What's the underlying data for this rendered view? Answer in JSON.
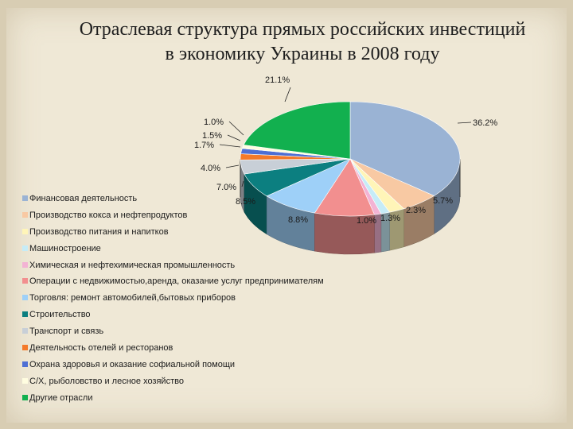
{
  "title": {
    "line1": "Отраслевая структура прямых российских инвестиций",
    "line2": "в экономику Украины в 2008 году"
  },
  "chart_data": {
    "type": "pie",
    "title": "Отраслевая структура прямых российских инвестиций в экономику Украины в 2008 году",
    "legend_position": "left-bottom",
    "slices": [
      {
        "name": "Финансовая деятельность",
        "value": 36.2,
        "label": "36.2%",
        "color": "#9ab3d4"
      },
      {
        "name": "Производство кокса и нефтепродуктов",
        "value": 5.7,
        "label": "5.7%",
        "color": "#f8c9a3"
      },
      {
        "name": "Производство питания и напитков",
        "value": 2.3,
        "label": "2.3%",
        "color": "#fff5b8"
      },
      {
        "name": "Машиностроение",
        "value": 1.3,
        "label": "1.3%",
        "color": "#c6ecf7"
      },
      {
        "name": "Химическая и нефтехимическая промышленность",
        "value": 1.0,
        "label": "1.0%",
        "color": "#f3b3d4"
      },
      {
        "name": "Операции с недвижимостью,аренда, оказание услуг предпринимателям",
        "value": 8.8,
        "label": "8.8%",
        "color": "#f28f8f"
      },
      {
        "name": "Торговля: ремонт автомобилей,бытовых приборов",
        "value": 8.5,
        "label": "8.5%",
        "color": "#9ed0f8"
      },
      {
        "name": "Строительство",
        "value": 7.0,
        "label": "7.0%",
        "color": "#0c7f80"
      },
      {
        "name": "Транспорт и связь",
        "value": 4.0,
        "label": "4.0%",
        "color": "#c8cfd7"
      },
      {
        "name": "Деятельность отелей и ресторанов",
        "value": 1.7,
        "label": "1.7%",
        "color": "#f47a2a"
      },
      {
        "name": "Охрана здоровья и оказание софиальной помощи",
        "value": 1.5,
        "label": "1.5%",
        "color": "#4e6fd4"
      },
      {
        "name": "С/Х, рыболовство и лесное хозяйство",
        "value": 1.0,
        "label": "1.0%",
        "color": "#fffde0"
      },
      {
        "name": "Другие отрасли",
        "value": 21.1,
        "label": "21.1%",
        "color": "#12b04f"
      }
    ]
  }
}
